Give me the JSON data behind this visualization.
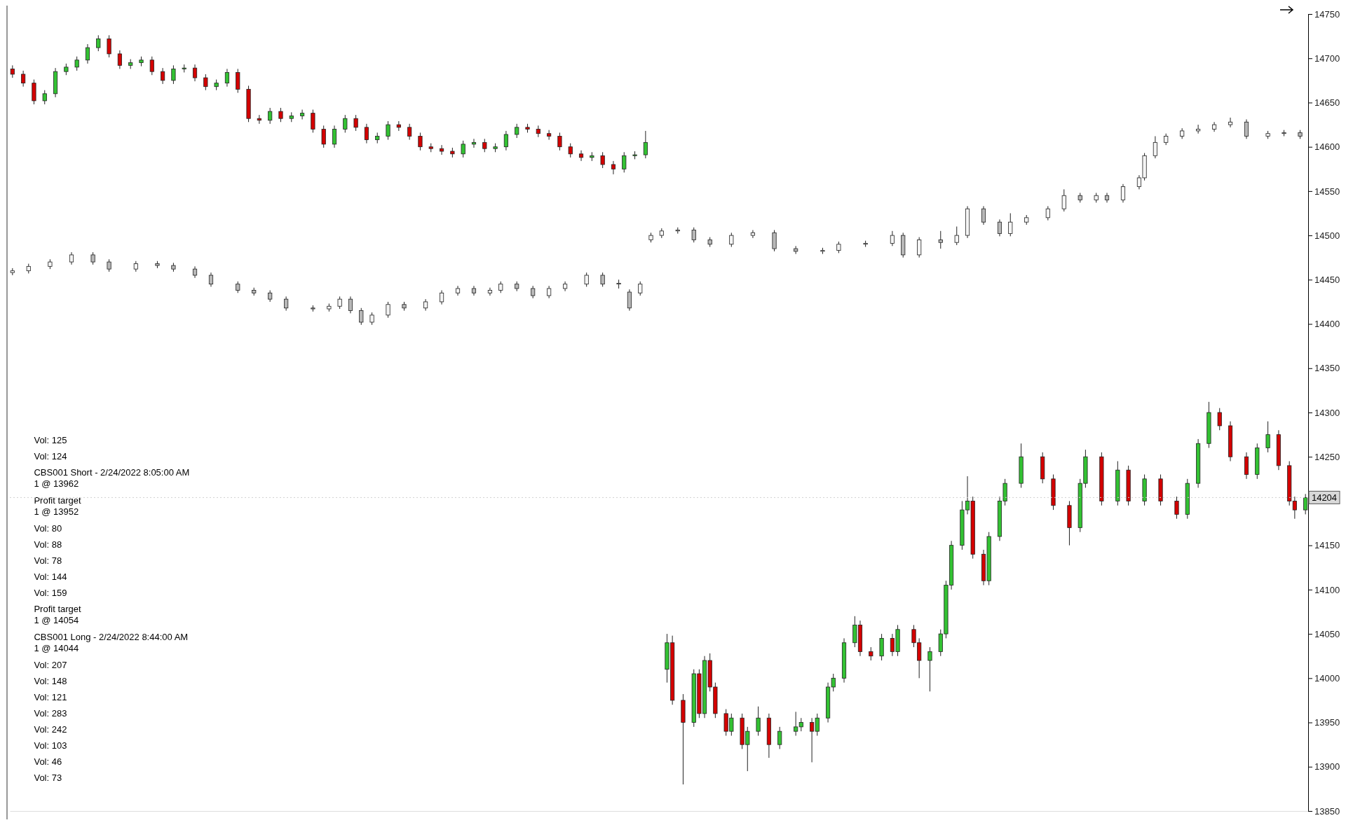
{
  "chart_data": {
    "type": "candlestick",
    "ylim": [
      13850,
      14750
    ],
    "yticks": [
      13850,
      13900,
      13950,
      14000,
      14050,
      14100,
      14150,
      {
        "value": 14200,
        "label": null
      },
      14250,
      14300,
      14350,
      14400,
      14450,
      14500,
      14550,
      14600,
      14650,
      14700,
      14750
    ],
    "tick_labels": "y",
    "grid": false,
    "categories": [
      null,
      null,
      null,
      null,
      null,
      null,
      null,
      null,
      null,
      null,
      null,
      null,
      null,
      null,
      null,
      null,
      null,
      null,
      null,
      null,
      null,
      null,
      null,
      null,
      null,
      null,
      null,
      null,
      null,
      null,
      null,
      null,
      null,
      null,
      null,
      null,
      null,
      null,
      null,
      null,
      null,
      null,
      null,
      null,
      null,
      null,
      null,
      null,
      null,
      null,
      null,
      null,
      null,
      null,
      null,
      null,
      null,
      null,
      null,
      null,
      null,
      null,
      null,
      null,
      null,
      null,
      null,
      null,
      null,
      null,
      null,
      null,
      null,
      null,
      null,
      null,
      null,
      null,
      null,
      null,
      null,
      null,
      null,
      null,
      null,
      null,
      null,
      null,
      null,
      null,
      null,
      null,
      null,
      null,
      null,
      null,
      null,
      null,
      null,
      null,
      null,
      null,
      null,
      null,
      null,
      null,
      null,
      null,
      null,
      null,
      null,
      null,
      null,
      null,
      null,
      null,
      null,
      null,
      null,
      null,
      null,
      null,
      null,
      null,
      null,
      null,
      null,
      null,
      null,
      null,
      null,
      null,
      null,
      null,
      null,
      null,
      null,
      null,
      null,
      null,
      null,
      null,
      null,
      null,
      null,
      null,
      null,
      null,
      null,
      null,
      null,
      null,
      null,
      null,
      null,
      null,
      null,
      null,
      null,
      null,
      null,
      null,
      null,
      null,
      null,
      null,
      null,
      null,
      null,
      null,
      null,
      null,
      null,
      null,
      null,
      null,
      null,
      null,
      null,
      null,
      null,
      null,
      null,
      null,
      null,
      null,
      null,
      null,
      null,
      null,
      null,
      null,
      null,
      null,
      null,
      null,
      null,
      null,
      null,
      null,
      null,
      null,
      null,
      null,
      null,
      null,
      null,
      null,
      null,
      null,
      null,
      null,
      null,
      null,
      null,
      null,
      null,
      null,
      null,
      null,
      null,
      null,
      null,
      null,
      null,
      null,
      null,
      null,
      null,
      null,
      null,
      null,
      null,
      null,
      null,
      null,
      null,
      null,
      null,
      null,
      null,
      null
    ],
    "series": [
      {
        "ohlc": [
          [
            14458,
            14463,
            14455,
            14460
          ],
          null,
          null,
          [
            14460,
            14468,
            14457,
            14465
          ],
          null,
          null,
          null,
          [
            14465,
            14473,
            14462,
            14470
          ],
          null,
          null,
          null,
          [
            14470,
            14481,
            14467,
            14478
          ],
          null,
          null,
          null,
          [
            14478,
            14481,
            14467,
            14470
          ],
          null,
          null,
          [
            14470,
            14473,
            14459,
            14462
          ],
          null,
          null,
          null,
          null,
          [
            14462,
            14471,
            14459,
            14468
          ],
          null,
          null,
          null,
          [
            14468,
            14471,
            14463,
            14466
          ],
          null,
          null,
          [
            14466,
            14469,
            14459,
            14462
          ],
          null,
          null,
          null,
          [
            14462,
            14465,
            14452,
            14455
          ],
          null,
          null,
          [
            14455,
            14458,
            14442,
            14445
          ],
          null,
          null,
          null,
          null,
          [
            14445,
            14448,
            14435,
            14438
          ],
          null,
          null,
          [
            14438,
            14441,
            14432,
            14435
          ],
          null,
          null,
          [
            14435,
            14438,
            14425,
            14428
          ],
          null,
          null,
          [
            14428,
            14431,
            14415,
            14418
          ],
          null,
          null,
          null,
          null,
          [
            14418,
            14421,
            14414,
            14417
          ],
          null,
          null,
          [
            14417,
            14423,
            14414,
            14420
          ],
          null,
          [
            14420,
            14431,
            14417,
            14428
          ],
          null,
          [
            14428,
            14431,
            14412,
            14415
          ],
          null,
          [
            14415,
            14418,
            14399,
            14402
          ],
          null,
          [
            14402,
            14413,
            14399,
            14410
          ],
          null,
          null,
          [
            14410,
            14425,
            14407,
            14422
          ],
          null,
          null,
          [
            14422,
            14425,
            14415,
            14418
          ],
          null,
          null,
          null,
          [
            14418,
            14428,
            14415,
            14425
          ],
          null,
          null,
          [
            14425,
            14438,
            14422,
            14435
          ],
          null,
          null,
          [
            14435,
            14443,
            14432,
            14440
          ],
          null,
          null,
          [
            14440,
            14443,
            14432,
            14435
          ],
          null,
          null,
          [
            14435,
            14441,
            14432,
            14438
          ],
          null,
          [
            14438,
            14448,
            14435,
            14445
          ],
          null,
          null,
          [
            14445,
            14448,
            14437,
            14440
          ],
          null,
          null,
          [
            14440,
            14443,
            14429,
            14432
          ],
          null,
          null,
          [
            14432,
            14443,
            14429,
            14440
          ],
          null,
          null,
          [
            14440,
            14448,
            14437,
            14445
          ],
          null,
          null,
          null,
          [
            14445,
            14458,
            14442,
            14455
          ],
          null,
          null,
          [
            14455,
            14458,
            14442,
            14445
          ],
          null,
          null,
          [
            14445,
            14450,
            14440,
            14446
          ],
          null,
          [
            14436,
            14439,
            14415,
            14418
          ],
          null,
          [
            14435,
            14448,
            14432,
            14445
          ],
          null,
          [
            14495,
            14503,
            14492,
            14500
          ],
          null,
          [
            14500,
            14508,
            14497,
            14505
          ],
          null,
          null,
          [
            14505,
            14509,
            14502,
            14506
          ],
          null,
          null,
          [
            14506,
            14509,
            14492,
            14495
          ],
          null,
          null,
          [
            14495,
            14498,
            14487,
            14490
          ],
          null,
          null,
          null,
          [
            14490,
            14503,
            14487,
            14500
          ],
          null,
          null,
          null,
          [
            14500,
            14506,
            14497,
            14503
          ],
          null,
          null,
          null,
          [
            14503,
            14506,
            14482,
            14485
          ],
          null,
          null,
          null,
          [
            14485,
            14488,
            14479,
            14482
          ],
          null,
          null,
          null,
          null,
          [
            14482,
            14486,
            14479,
            14483
          ],
          null,
          null,
          [
            14483,
            14493,
            14480,
            14490
          ],
          null,
          null,
          null,
          null,
          [
            14490,
            14494,
            14487,
            14491
          ],
          null,
          null,
          null,
          null,
          [
            14491,
            14505,
            14488,
            14500
          ],
          null,
          [
            14500,
            14503,
            14475,
            14478
          ],
          null,
          null,
          [
            14478,
            14498,
            14475,
            14495
          ],
          null,
          null,
          null,
          [
            14495,
            14505,
            14485,
            14492
          ],
          null,
          null,
          [
            14492,
            14510,
            14489,
            14500
          ],
          null,
          [
            14500,
            14533,
            14497,
            14530
          ],
          null,
          null,
          [
            14530,
            14533,
            14512,
            14515
          ],
          null,
          null,
          [
            14515,
            14518,
            14499,
            14502
          ],
          null,
          [
            14502,
            14525,
            14499,
            14515
          ],
          null,
          null,
          [
            14515,
            14523,
            14512,
            14520
          ],
          null,
          null,
          null,
          [
            14520,
            14533,
            14517,
            14530
          ],
          null,
          null,
          [
            14530,
            14552,
            14527,
            14545
          ],
          null,
          null,
          [
            14545,
            14548,
            14537,
            14540
          ],
          null,
          null,
          [
            14540,
            14548,
            14537,
            14545
          ],
          null,
          [
            14545,
            14548,
            14537,
            14540
          ],
          null,
          null,
          [
            14540,
            14558,
            14537,
            14555
          ],
          null,
          null,
          [
            14555,
            14568,
            14552,
            14565
          ],
          [
            14565,
            14593,
            14562,
            14590
          ],
          null,
          [
            14590,
            14612,
            14587,
            14605
          ],
          null,
          [
            14605,
            14615,
            14602,
            14612
          ],
          null,
          null,
          [
            14612,
            14621,
            14609,
            14618
          ],
          null,
          null,
          [
            14618,
            14625,
            14615,
            14620
          ],
          null,
          null,
          [
            14620,
            14628,
            14617,
            14625
          ],
          null,
          null,
          [
            14625,
            14633,
            14622,
            14628
          ],
          null,
          null,
          [
            14628,
            14631,
            14609,
            14612
          ],
          null,
          null,
          null,
          [
            14612,
            14618,
            14609,
            14615
          ],
          null,
          null,
          [
            14615,
            14619,
            14612,
            14616
          ],
          null,
          null,
          [
            14616,
            14619,
            14609,
            14612
          ],
          null
        ]
      },
      {
        "ohlc": [
          [
            14688,
            14692,
            14678,
            14682
          ],
          null,
          [
            14682,
            14686,
            14668,
            14672
          ],
          null,
          [
            14672,
            14676,
            14648,
            14652
          ],
          null,
          [
            14652,
            14664,
            14648,
            14660
          ],
          null,
          [
            14660,
            14689,
            14656,
            14685
          ],
          null,
          [
            14685,
            14694,
            14681,
            14690
          ],
          null,
          [
            14690,
            14702,
            14686,
            14698
          ],
          null,
          [
            14698,
            14716,
            14694,
            14712
          ],
          null,
          [
            14712,
            14726,
            14708,
            14722
          ],
          null,
          [
            14722,
            14726,
            14701,
            14705
          ],
          null,
          [
            14705,
            14709,
            14688,
            14692
          ],
          null,
          [
            14692,
            14699,
            14688,
            14695
          ],
          null,
          [
            14695,
            14702,
            14691,
            14698
          ],
          null,
          [
            14698,
            14702,
            14681,
            14685
          ],
          null,
          [
            14685,
            14689,
            14671,
            14675
          ],
          null,
          [
            14675,
            14692,
            14671,
            14688
          ],
          null,
          [
            14688,
            14693,
            14684,
            14689
          ],
          null,
          [
            14689,
            14693,
            14674,
            14678
          ],
          null,
          [
            14678,
            14682,
            14664,
            14668
          ],
          null,
          [
            14668,
            14676,
            14664,
            14672
          ],
          null,
          [
            14672,
            14688,
            14668,
            14684
          ],
          null,
          [
            14684,
            14688,
            14661,
            14665
          ],
          null,
          [
            14665,
            14669,
            14628,
            14632
          ],
          null,
          [
            14632,
            14636,
            14626,
            14630
          ],
          null,
          [
            14630,
            14644,
            14626,
            14640
          ],
          null,
          [
            14640,
            14644,
            14628,
            14632
          ],
          null,
          [
            14632,
            14639,
            14628,
            14635
          ],
          null,
          [
            14635,
            14642,
            14631,
            14638
          ],
          null,
          [
            14638,
            14642,
            14616,
            14620
          ],
          null,
          [
            14620,
            14624,
            14599,
            14603
          ],
          null,
          [
            14603,
            14624,
            14599,
            14620
          ],
          null,
          [
            14620,
            14636,
            14616,
            14632
          ],
          null,
          [
            14632,
            14636,
            14618,
            14622
          ],
          null,
          [
            14622,
            14626,
            14604,
            14608
          ],
          null,
          [
            14608,
            14616,
            14604,
            14612
          ],
          null,
          [
            14612,
            14629,
            14608,
            14625
          ],
          null,
          [
            14625,
            14629,
            14618,
            14622
          ],
          null,
          [
            14622,
            14626,
            14608,
            14612
          ],
          null,
          [
            14612,
            14616,
            14596,
            14600
          ],
          null,
          [
            14600,
            14604,
            14594,
            14598
          ],
          null,
          [
            14598,
            14602,
            14591,
            14595
          ],
          null,
          [
            14595,
            14599,
            14588,
            14592
          ],
          null,
          [
            14592,
            14607,
            14588,
            14603
          ],
          null,
          [
            14603,
            14609,
            14599,
            14605
          ],
          null,
          [
            14605,
            14609,
            14594,
            14598
          ],
          null,
          [
            14598,
            14604,
            14594,
            14600
          ],
          null,
          [
            14600,
            14618,
            14596,
            14614
          ],
          null,
          [
            14614,
            14626,
            14610,
            14622
          ],
          null,
          [
            14622,
            14626,
            14616,
            14620
          ],
          null,
          [
            14620,
            14624,
            14611,
            14615
          ],
          null,
          [
            14615,
            14619,
            14608,
            14612
          ],
          null,
          [
            14612,
            14616,
            14596,
            14600
          ],
          null,
          [
            14600,
            14604,
            14588,
            14592
          ],
          null,
          [
            14592,
            14596,
            14584,
            14588
          ],
          null,
          [
            14588,
            14594,
            14584,
            14590
          ],
          null,
          [
            14590,
            14594,
            14576,
            14580
          ],
          null,
          [
            14580,
            14584,
            14569,
            14575
          ],
          null,
          [
            14575,
            14594,
            14571,
            14590
          ],
          null,
          [
            14590,
            14595,
            14586,
            14591
          ],
          null,
          [
            14591,
            14618,
            14587,
            14605
          ],
          null,
          null,
          null,
          [
            14010,
            14050,
            13995,
            14040
          ],
          [
            14040,
            14048,
            13970,
            13975
          ],
          null,
          [
            13975,
            13982,
            13880,
            13950
          ],
          null,
          [
            13950,
            14010,
            13945,
            14005
          ],
          [
            14005,
            14010,
            13955,
            13960
          ],
          [
            13960,
            14025,
            13955,
            14020
          ],
          [
            14020,
            14028,
            13985,
            13990
          ],
          [
            13990,
            13995,
            13955,
            13960
          ],
          null,
          [
            13960,
            13965,
            13935,
            13940
          ],
          [
            13940,
            13960,
            13935,
            13955
          ],
          null,
          [
            13955,
            13960,
            13920,
            13925
          ],
          [
            13925,
            13945,
            13895,
            13940
          ],
          null,
          [
            13940,
            13968,
            13935,
            13955
          ],
          null,
          [
            13955,
            13960,
            13910,
            13925
          ],
          null,
          [
            13925,
            13945,
            13920,
            13940
          ],
          null,
          null,
          [
            13940,
            13962,
            13935,
            13945
          ],
          [
            13945,
            13955,
            13940,
            13950
          ],
          null,
          [
            13950,
            13955,
            13905,
            13940
          ],
          [
            13940,
            13960,
            13935,
            13955
          ],
          null,
          [
            13955,
            13995,
            13950,
            13990
          ],
          [
            13990,
            14005,
            13985,
            14000
          ],
          null,
          [
            14000,
            14045,
            13995,
            14040
          ],
          null,
          [
            14040,
            14070,
            14035,
            14060
          ],
          [
            14060,
            14065,
            14025,
            14030
          ],
          null,
          [
            14030,
            14035,
            14020,
            14025
          ],
          null,
          [
            14025,
            14050,
            14020,
            14045
          ],
          null,
          [
            14045,
            14050,
            14025,
            14030
          ],
          [
            14030,
            14060,
            14025,
            14055
          ],
          null,
          null,
          [
            14055,
            14060,
            14035,
            14040
          ],
          [
            14040,
            14045,
            14000,
            14020
          ],
          null,
          [
            14020,
            14035,
            13985,
            14030
          ],
          null,
          [
            14030,
            14055,
            14025,
            14050
          ],
          [
            14050,
            14110,
            14045,
            14105
          ],
          [
            14105,
            14155,
            14100,
            14150
          ],
          null,
          [
            14150,
            14200,
            14145,
            14190
          ],
          [
            14190,
            14228,
            14185,
            14200
          ],
          [
            14200,
            14205,
            14135,
            14140
          ],
          null,
          [
            14140,
            14145,
            14105,
            14110
          ],
          [
            14110,
            14165,
            14105,
            14160
          ],
          null,
          [
            14160,
            14205,
            14155,
            14200
          ],
          [
            14200,
            14225,
            14195,
            14220
          ],
          null,
          null,
          [
            14220,
            14265,
            14215,
            14250
          ],
          null,
          null,
          null,
          [
            14250,
            14255,
            14220,
            14225
          ],
          null,
          [
            14225,
            14230,
            14190,
            14195
          ],
          null,
          null,
          [
            14195,
            14200,
            14150,
            14170
          ],
          null,
          [
            14170,
            14225,
            14165,
            14220
          ],
          [
            14220,
            14258,
            14215,
            14250
          ],
          null,
          null,
          [
            14250,
            14255,
            14195,
            14200
          ],
          null,
          null,
          [
            14200,
            14245,
            14195,
            14235
          ],
          null,
          [
            14235,
            14240,
            14195,
            14200
          ],
          null,
          null,
          [
            14200,
            14230,
            14195,
            14225
          ],
          null,
          null,
          [
            14225,
            14230,
            14195,
            14200
          ],
          null,
          null,
          [
            14200,
            14205,
            14180,
            14185
          ],
          null,
          [
            14185,
            14225,
            14180,
            14220
          ],
          null,
          [
            14220,
            14270,
            14215,
            14265
          ],
          null,
          [
            14265,
            14312,
            14260,
            14300
          ],
          null,
          [
            14300,
            14305,
            14280,
            14285
          ],
          null,
          [
            14285,
            14290,
            14245,
            14250
          ],
          null,
          null,
          [
            14250,
            14255,
            14225,
            14230
          ],
          null,
          [
            14230,
            14265,
            14225,
            14260
          ],
          null,
          [
            14260,
            14290,
            14255,
            14275
          ],
          null,
          [
            14275,
            14280,
            14235,
            14240
          ],
          null,
          [
            14240,
            14245,
            14195,
            14200
          ],
          [
            14200,
            14205,
            14180,
            14190
          ],
          null,
          [
            14190,
            14208,
            14185,
            14204
          ]
        ]
      }
    ],
    "ref_lines": [
      {
        "axis": "y",
        "value": 14204,
        "label": "14204"
      }
    ],
    "annotations": [
      "Vol: 125",
      "Vol: 124",
      "CBS001 Short - 2/24/2022 8:05:00 AM\n1 @ 13962",
      "Profit target\n1 @ 13952",
      "Vol: 80",
      "Vol: 88",
      "Vol: 78",
      "Vol: 144",
      "Vol: 159",
      "Profit target\n1 @ 14054",
      "CBS001 Long - 2/24/2022 8:44:00 AM\n1 @ 14044",
      "Vol: 207",
      "Vol: 148",
      "Vol: 121",
      "Vol: 283",
      "Vol: 242",
      "Vol: 103",
      "Vol: 46",
      "Vol: 73"
    ]
  }
}
